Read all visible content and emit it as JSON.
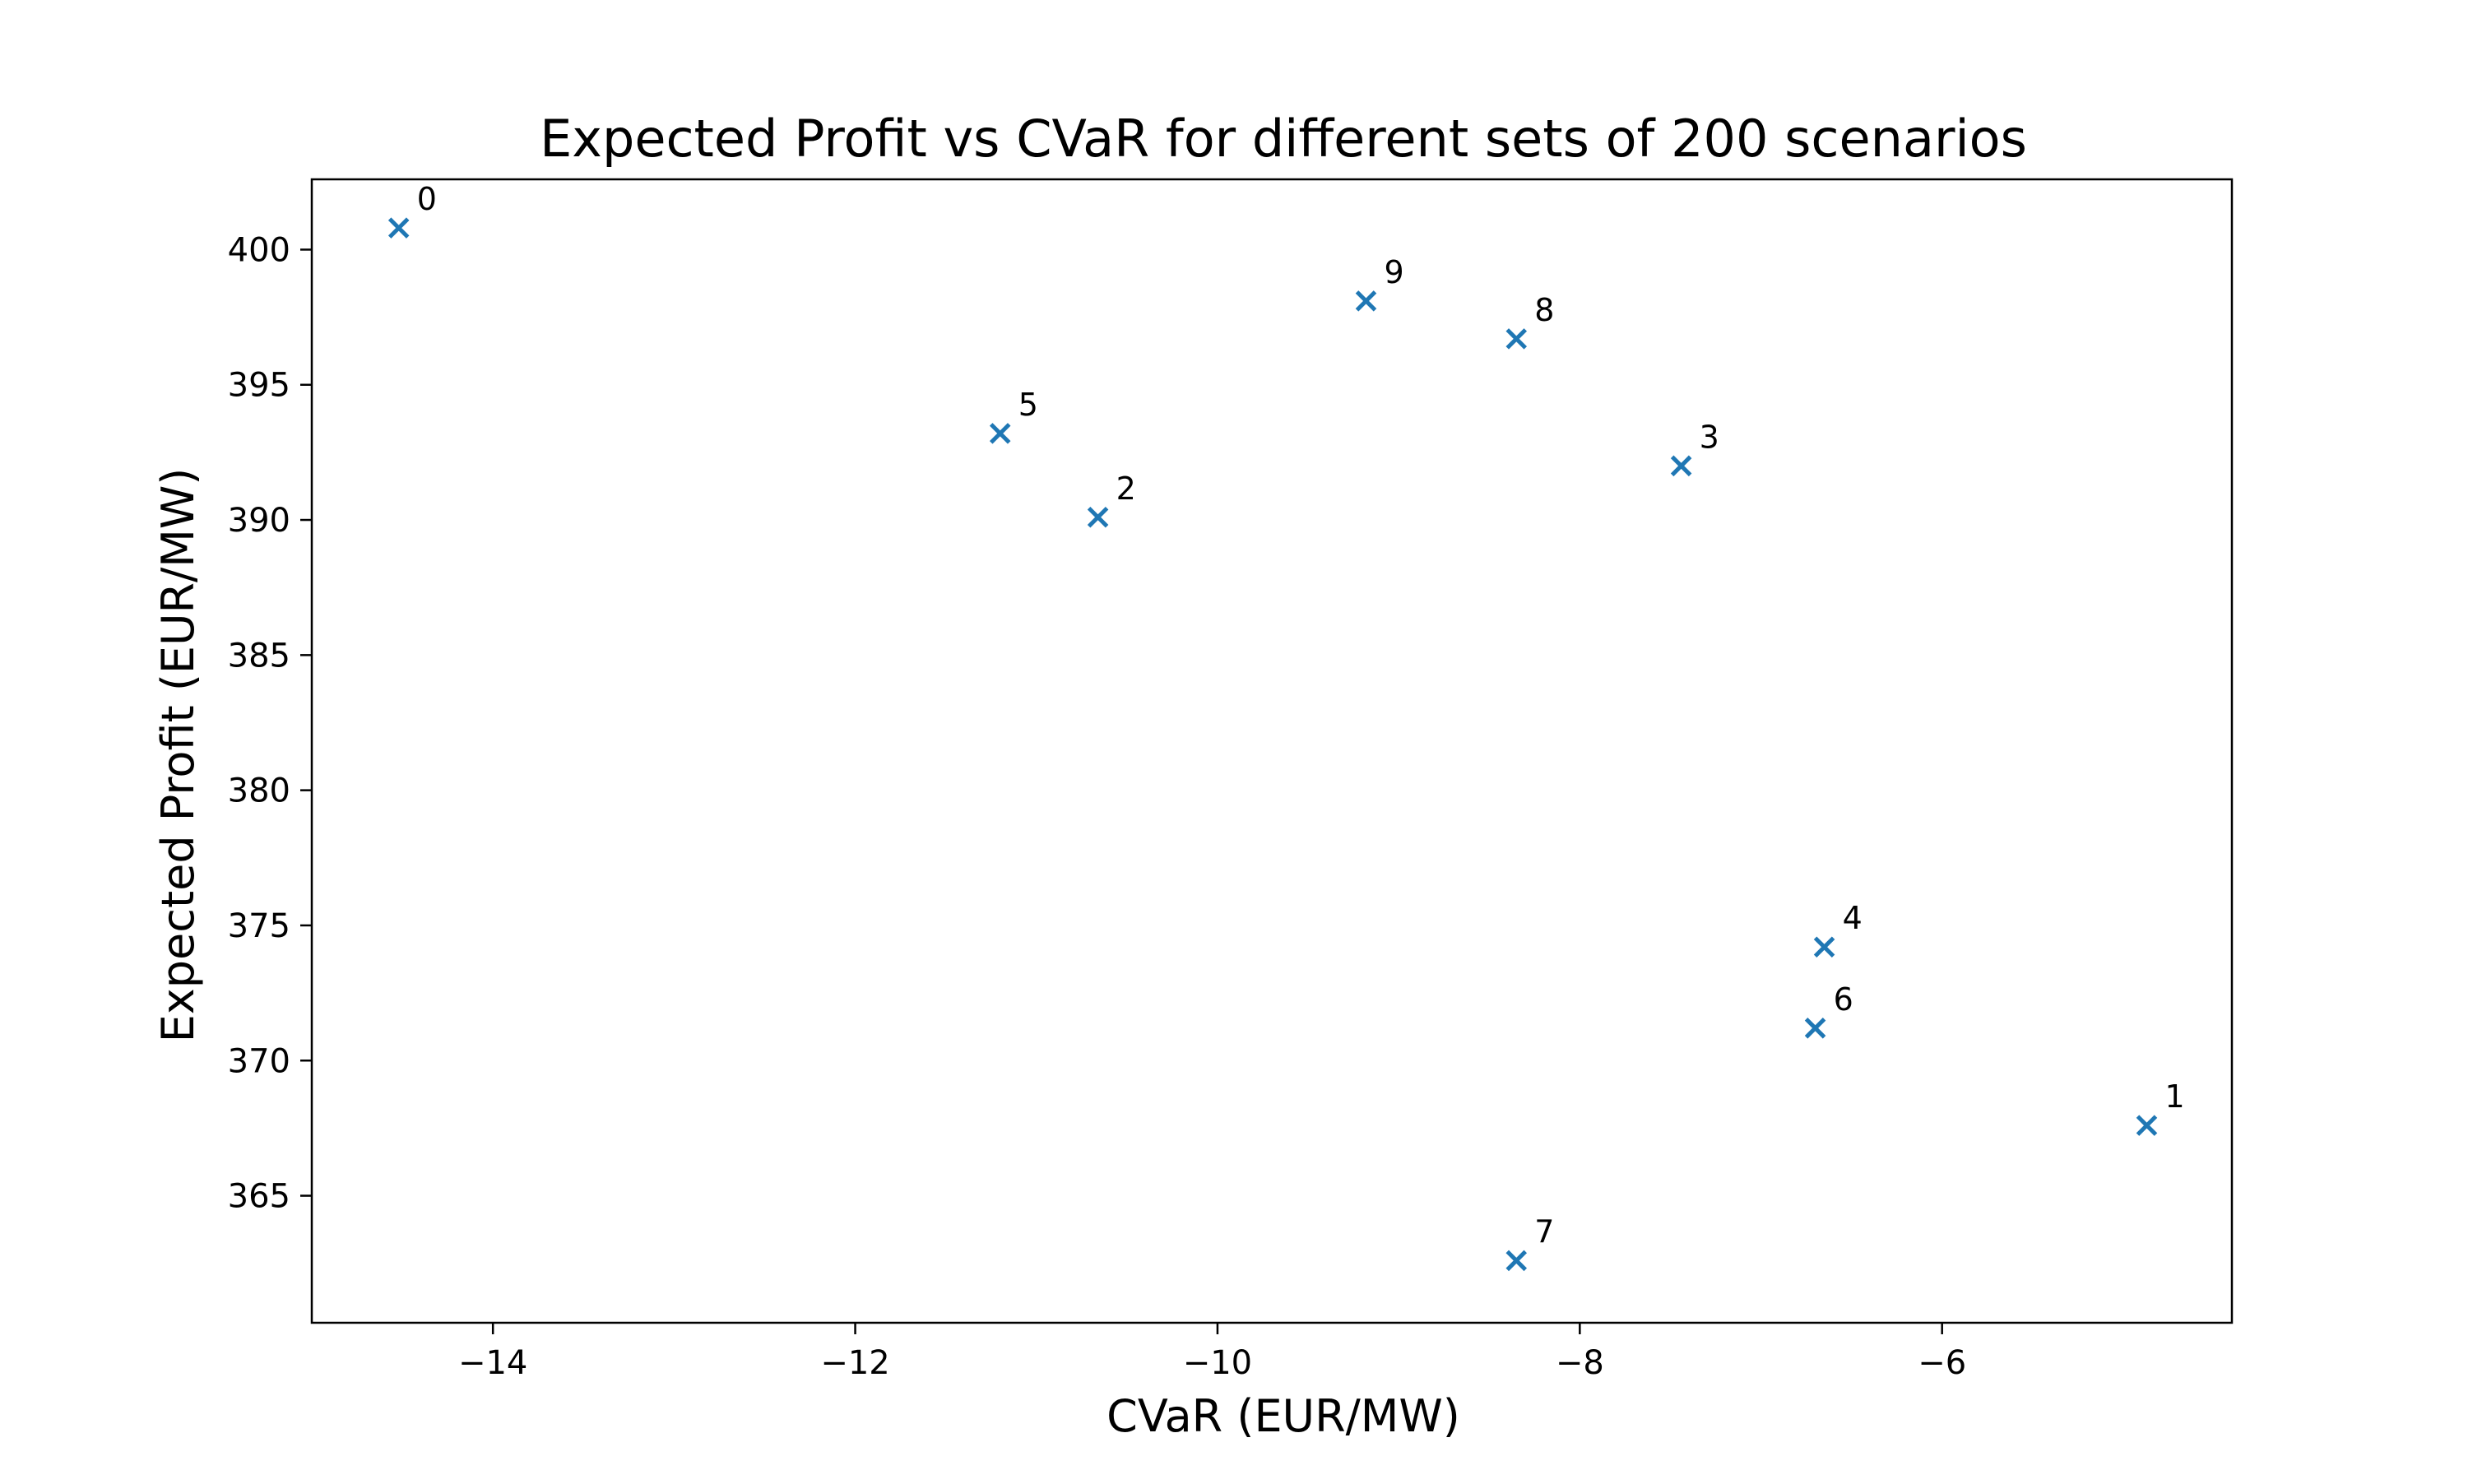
{
  "chart_data": {
    "type": "scatter",
    "title": "Expected Profit vs CVaR for different sets of 200 scenarios",
    "xlabel": "CVaR (EUR/MW)",
    "ylabel": "Expected Profit (EUR/MW)",
    "xlim": [
      -15.0,
      -4.4
    ],
    "ylim": [
      360.3,
      402.6
    ],
    "xticks": [
      -14,
      -12,
      -10,
      -8,
      -6
    ],
    "xtick_labels": [
      "−14",
      "−12",
      "−10",
      "−8",
      "−6"
    ],
    "yticks": [
      365,
      370,
      375,
      380,
      385,
      390,
      395,
      400
    ],
    "ytick_labels": [
      "365",
      "370",
      "375",
      "380",
      "385",
      "390",
      "395",
      "400"
    ],
    "grid": false,
    "legend": "none",
    "marker": "x",
    "marker_color": "#1f77b4",
    "points": [
      {
        "label": "0",
        "x": -14.52,
        "y": 400.8
      },
      {
        "label": "1",
        "x": -4.87,
        "y": 367.6
      },
      {
        "label": "2",
        "x": -10.66,
        "y": 390.1
      },
      {
        "label": "3",
        "x": -7.44,
        "y": 392.0
      },
      {
        "label": "4",
        "x": -6.65,
        "y": 374.2
      },
      {
        "label": "5",
        "x": -11.2,
        "y": 393.2
      },
      {
        "label": "6",
        "x": -6.7,
        "y": 371.2
      },
      {
        "label": "7",
        "x": -8.35,
        "y": 362.6
      },
      {
        "label": "8",
        "x": -8.35,
        "y": 396.7
      },
      {
        "label": "9",
        "x": -9.18,
        "y": 398.1
      }
    ]
  }
}
